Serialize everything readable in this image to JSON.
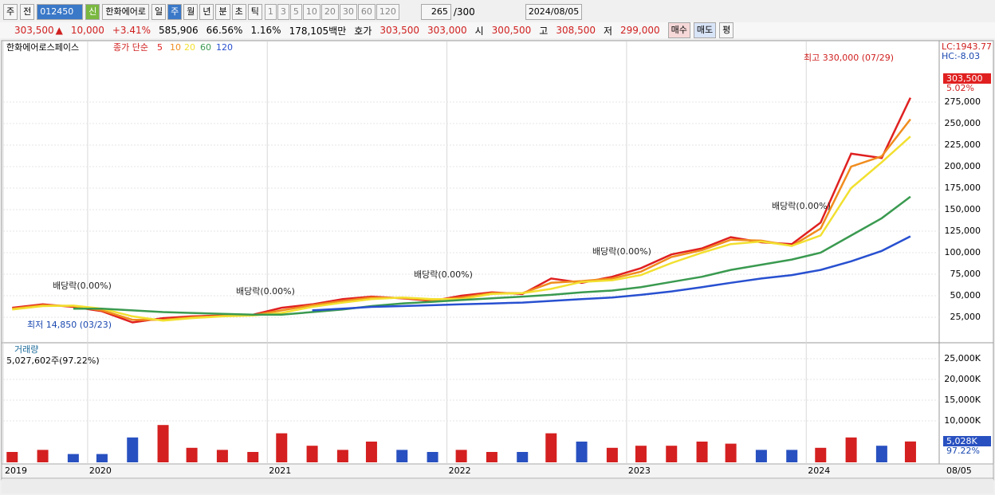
{
  "toolbar": {
    "period": "주",
    "prev": "전",
    "code": "012450",
    "new_badge": "신",
    "name": "한화에어로",
    "units": [
      "일",
      "주",
      "월",
      "년",
      "분",
      "초",
      "틱"
    ],
    "counts": [
      "1",
      "3",
      "5",
      "10",
      "20",
      "30",
      "60",
      "120"
    ],
    "view": "265",
    "view_total": "/300",
    "date": "2024/08/05"
  },
  "info_bar": {
    "price": "303,500",
    "arrow": "▲",
    "change": "10,000",
    "change_pct": "+3.41%",
    "volume": "585,906",
    "vol_ratio": "66.56%",
    "turnover": "1.16%",
    "amount": "178,105백만",
    "quote_label": "호가",
    "ask": "303,500",
    "bid": "303,000",
    "open_label": "시",
    "open": "300,500",
    "high_label": "고",
    "high": "308,500",
    "low_label": "저",
    "low": "299,000",
    "buy": "매수",
    "sell": "매도",
    "avg": "평"
  },
  "chart_data": [
    {
      "type": "line",
      "title": "한화에어로스페이스",
      "legend_title": "종가 단순",
      "lc": "LC:1943.77",
      "hc": "HC:-8.03",
      "last_label": "303,500",
      "last_pct": "5.02%",
      "annotations": [
        "최고 330,000 (07/29)",
        "최저 14,850 (03/23)",
        "배당락(0.00%)",
        "배당락(0.00%)",
        "배당락(0.00%)",
        "배당락(0.00%)",
        "배당락(0.00%)"
      ],
      "x": [
        2019.58,
        2019.75,
        2019.92,
        2020.08,
        2020.25,
        2020.42,
        2020.58,
        2020.75,
        2020.92,
        2021.08,
        2021.25,
        2021.42,
        2021.58,
        2021.75,
        2021.92,
        2022.08,
        2022.25,
        2022.42,
        2022.58,
        2022.75,
        2022.92,
        2023.08,
        2023.25,
        2023.42,
        2023.58,
        2023.75,
        2023.92,
        2024.08,
        2024.25,
        2024.42,
        2024.58
      ],
      "series": [
        {
          "name": "5",
          "color": "#e02020",
          "values": [
            36000,
            40000,
            37000,
            32000,
            19000,
            24000,
            26000,
            27000,
            28000,
            36000,
            40000,
            46000,
            49000,
            47000,
            44000,
            50000,
            54000,
            52000,
            70000,
            65000,
            72000,
            82000,
            98000,
            105000,
            118000,
            112000,
            110000,
            135000,
            215000,
            210000,
            280000
          ]
        },
        {
          "name": "10",
          "color": "#f08c1e",
          "values": [
            35000,
            39000,
            38000,
            33000,
            22000,
            22000,
            25000,
            26500,
            27500,
            33000,
            39000,
            44000,
            48000,
            47500,
            45000,
            48000,
            53000,
            53000,
            65000,
            67000,
            70000,
            78000,
            95000,
            103000,
            115000,
            114000,
            108000,
            128000,
            200000,
            212000,
            255000
          ]
        },
        {
          "name": "20",
          "color": "#f2e030",
          "values": [
            34000,
            38000,
            38500,
            35000,
            26000,
            21000,
            24000,
            26000,
            27000,
            30000,
            37000,
            42000,
            46000,
            48000,
            46000,
            46000,
            52000,
            53000,
            58000,
            66000,
            68000,
            74000,
            88000,
            100000,
            110000,
            113000,
            108000,
            120000,
            175000,
            205000,
            235000
          ]
        },
        {
          "name": "60",
          "color": "#3a9a50",
          "values": [
            null,
            null,
            35000,
            35000,
            33000,
            31000,
            30000,
            29000,
            28000,
            28000,
            31000,
            34000,
            38000,
            41000,
            43000,
            45000,
            47000,
            49000,
            51000,
            54000,
            56000,
            60000,
            66000,
            72000,
            80000,
            86000,
            92000,
            100000,
            120000,
            140000,
            165000
          ]
        },
        {
          "name": "120",
          "color": "#2850d0",
          "values": [
            null,
            null,
            null,
            null,
            null,
            null,
            null,
            null,
            null,
            null,
            33000,
            35000,
            37000,
            38000,
            39000,
            40000,
            41000,
            42000,
            44000,
            46000,
            48000,
            51000,
            55000,
            60000,
            65000,
            70000,
            74000,
            80000,
            90000,
            102000,
            119000
          ]
        }
      ],
      "xlim": [
        2019.53,
        2024.74
      ],
      "ylim": [
        -4630,
        345370
      ],
      "yticks": [
        {
          "value": 25000,
          "label": "25,000"
        },
        {
          "value": 50000,
          "label": "50,000"
        },
        {
          "value": 75000,
          "label": "75,000"
        },
        {
          "value": 100000,
          "label": "100,000"
        },
        {
          "value": 125000,
          "label": "125,000"
        },
        {
          "value": 150000,
          "label": "150,000"
        },
        {
          "value": 175000,
          "label": "175,000"
        },
        {
          "value": 200000,
          "label": "200,000"
        },
        {
          "value": 225000,
          "label": "225,000"
        },
        {
          "value": 250000,
          "label": "250,000"
        },
        {
          "value": 275000,
          "label": "275,000"
        }
      ],
      "grid": true
    },
    {
      "type": "bar",
      "title": "거래량",
      "subtitle": "5,027,602주(97.22%)",
      "last_label": "5,028K",
      "last_pct": "97.22%",
      "end_label": "08/05",
      "up_color": "#d42020",
      "down_color": "#2850c0",
      "x": [
        2019.58,
        2019.75,
        2019.92,
        2020.08,
        2020.25,
        2020.42,
        2020.58,
        2020.75,
        2020.92,
        2021.08,
        2021.25,
        2021.42,
        2021.58,
        2021.75,
        2021.92,
        2022.08,
        2022.25,
        2022.42,
        2022.58,
        2022.75,
        2022.92,
        2023.08,
        2023.25,
        2023.42,
        2023.58,
        2023.75,
        2023.92,
        2024.08,
        2024.25,
        2024.42,
        2024.58
      ],
      "values": [
        2500,
        3000,
        2000,
        2000,
        6000,
        9000,
        3500,
        3000,
        2500,
        7000,
        4000,
        3000,
        5000,
        3000,
        2500,
        3000,
        2500,
        2500,
        7000,
        5000,
        3500,
        4000,
        4000,
        5000,
        4500,
        3000,
        3000,
        3500,
        6000,
        4000,
        5028
      ],
      "xlim": [
        2019.53,
        2024.74
      ],
      "ylim": [
        0,
        28460
      ],
      "xticks": [
        {
          "value": 2019.53,
          "label": "2019"
        },
        2020,
        2021,
        2022,
        2023,
        2024
      ],
      "yticks": [
        {
          "value": 10000,
          "label": "10,000K"
        },
        {
          "value": 15000,
          "label": "15,000K"
        },
        {
          "value": 20000,
          "label": "20,000K"
        },
        {
          "value": 25000,
          "label": "25,000K"
        }
      ],
      "grid": true
    }
  ]
}
